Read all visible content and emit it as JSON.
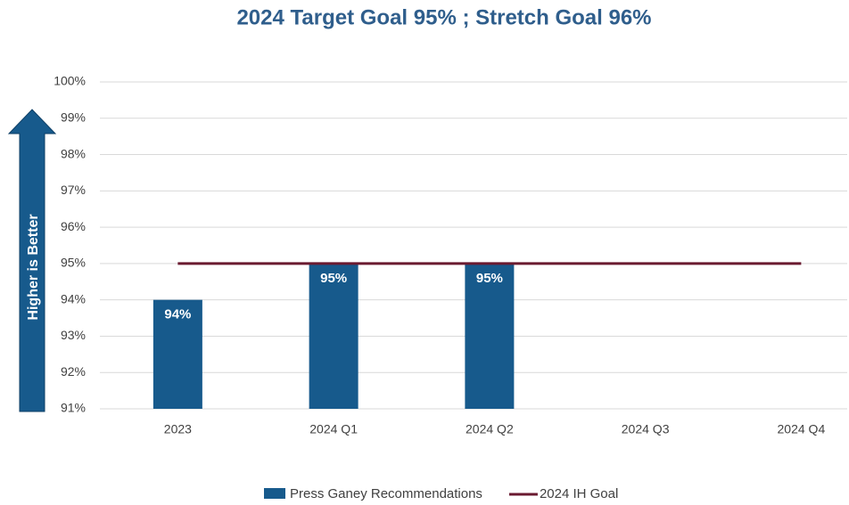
{
  "chart_data": {
    "type": "bar",
    "title": "2024 Target Goal 95% ;  Stretch Goal 96%",
    "annotation": "Higher is Better",
    "categories": [
      "2023",
      "2024 Q1",
      "2024 Q2",
      "2024 Q3",
      "2024 Q4"
    ],
    "series": [
      {
        "name": "Press Ganey Recommendations",
        "type": "bar",
        "color": "#175a8c",
        "values": [
          94,
          95,
          95,
          null,
          null
        ],
        "value_labels": [
          "94%",
          "95%",
          "95%",
          null,
          null
        ]
      },
      {
        "name": "2024 IH Goal",
        "type": "line",
        "color": "#6a1a30",
        "values": [
          95,
          95,
          95,
          95,
          95
        ]
      }
    ],
    "ylim": [
      91,
      100
    ],
    "yticks": [
      {
        "value": 91,
        "label": "91%"
      },
      {
        "value": 92,
        "label": "92%"
      },
      {
        "value": 93,
        "label": "93%"
      },
      {
        "value": 94,
        "label": "94%"
      },
      {
        "value": 95,
        "label": "95%"
      },
      {
        "value": 96,
        "label": "96%"
      },
      {
        "value": 97,
        "label": "97%"
      },
      {
        "value": 98,
        "label": "98%"
      },
      {
        "value": 99,
        "label": "99%"
      },
      {
        "value": 100,
        "label": "100%"
      }
    ],
    "grid": true,
    "legend": "bottom"
  }
}
